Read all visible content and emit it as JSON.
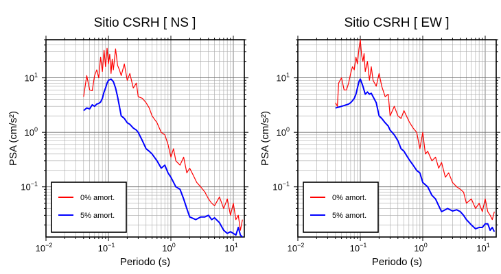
{
  "chart_data": [
    {
      "type": "line",
      "title": "Sitio CSRH [ NS ]",
      "xlabel": "Periodo (s)",
      "ylabel": "PSA (cm/s²)",
      "xscale": "log",
      "yscale": "log",
      "xlim": [
        0.01,
        15
      ],
      "ylim": [
        0.012,
        50
      ],
      "grid": true,
      "legend_position": "bottom-left",
      "x_ticks": [
        {
          "value": 0.01,
          "base": "10",
          "exp": "−2"
        },
        {
          "value": 0.1,
          "base": "10",
          "exp": "−1"
        },
        {
          "value": 1,
          "base": "10",
          "exp": "0"
        },
        {
          "value": 10,
          "base": "10",
          "exp": "1"
        }
      ],
      "y_ticks": [
        {
          "value": 0.1,
          "base": "10",
          "exp": "−1"
        },
        {
          "value": 1,
          "base": "10",
          "exp": "0"
        },
        {
          "value": 10,
          "base": "10",
          "exp": "1"
        }
      ],
      "series": [
        {
          "name": "0% amort.",
          "color": "#ff0000",
          "x": [
            0.04,
            0.045,
            0.05,
            0.055,
            0.06,
            0.065,
            0.07,
            0.075,
            0.08,
            0.085,
            0.09,
            0.095,
            0.1,
            0.105,
            0.11,
            0.115,
            0.12,
            0.13,
            0.14,
            0.15,
            0.16,
            0.18,
            0.2,
            0.22,
            0.25,
            0.28,
            0.3,
            0.35,
            0.4,
            0.45,
            0.5,
            0.6,
            0.7,
            0.8,
            0.9,
            1.0,
            1.1,
            1.2,
            1.4,
            1.6,
            1.8,
            2.0,
            2.3,
            2.6,
            3.0,
            3.5,
            4.0,
            4.5,
            5.0,
            6.0,
            7.0,
            8.0,
            9.0,
            10.0,
            11.0,
            12.0,
            13.0,
            14.0
          ],
          "values": [
            4.5,
            11.0,
            6.0,
            5.8,
            11.0,
            14.0,
            10.0,
            24.0,
            13.0,
            32.0,
            16.0,
            35.0,
            18.0,
            27.0,
            12.0,
            22.0,
            14.0,
            34.0,
            17.0,
            14.0,
            11.0,
            18.0,
            9.0,
            12.0,
            6.5,
            8.0,
            4.5,
            4.2,
            3.5,
            2.8,
            2.0,
            1.5,
            1.0,
            0.9,
            0.6,
            0.35,
            0.5,
            0.3,
            0.25,
            0.35,
            0.18,
            0.22,
            0.16,
            0.12,
            0.1,
            0.08,
            0.06,
            0.05,
            0.045,
            0.065,
            0.04,
            0.06,
            0.03,
            0.05,
            0.025,
            0.03,
            0.016,
            0.025
          ]
        },
        {
          "name": "5% amort.",
          "color": "#0000ff",
          "x": [
            0.04,
            0.045,
            0.05,
            0.055,
            0.06,
            0.065,
            0.07,
            0.075,
            0.08,
            0.085,
            0.09,
            0.095,
            0.1,
            0.11,
            0.12,
            0.13,
            0.14,
            0.15,
            0.16,
            0.18,
            0.2,
            0.22,
            0.25,
            0.28,
            0.3,
            0.35,
            0.4,
            0.45,
            0.5,
            0.6,
            0.7,
            0.8,
            0.9,
            1.0,
            1.2,
            1.4,
            1.6,
            1.8,
            2.0,
            2.5,
            3.0,
            3.5,
            4.0,
            4.5,
            5.0,
            6.0,
            7.0,
            8.0,
            9.0,
            10.0,
            11.0,
            12.0,
            13.0,
            14.0
          ],
          "values": [
            2.5,
            2.8,
            2.7,
            3.2,
            3.0,
            3.3,
            3.4,
            3.6,
            4.2,
            5.5,
            6.5,
            8.0,
            9.0,
            9.5,
            8.5,
            6.5,
            4.5,
            3.0,
            2.0,
            1.8,
            1.5,
            1.4,
            1.2,
            1.1,
            1.0,
            0.7,
            0.5,
            0.45,
            0.4,
            0.3,
            0.22,
            0.25,
            0.18,
            0.15,
            0.1,
            0.09,
            0.06,
            0.04,
            0.028,
            0.025,
            0.028,
            0.028,
            0.03,
            0.025,
            0.027,
            0.022,
            0.016,
            0.014,
            0.015,
            0.014,
            0.013,
            0.018,
            0.013,
            0.012
          ]
        }
      ]
    },
    {
      "type": "line",
      "title": "Sitio CSRH [ EW ]",
      "xlabel": "Periodo (s)",
      "ylabel": "PSA (cm/s²)",
      "xscale": "log",
      "yscale": "log",
      "xlim": [
        0.01,
        15
      ],
      "ylim": [
        0.012,
        50
      ],
      "grid": true,
      "legend_position": "bottom-left",
      "x_ticks": [
        {
          "value": 0.01,
          "base": "10",
          "exp": "−2"
        },
        {
          "value": 0.1,
          "base": "10",
          "exp": "−1"
        },
        {
          "value": 1,
          "base": "10",
          "exp": "0"
        },
        {
          "value": 10,
          "base": "10",
          "exp": "1"
        }
      ],
      "y_ticks": [
        {
          "value": 0.1,
          "base": "10",
          "exp": "−1"
        },
        {
          "value": 1,
          "base": "10",
          "exp": "0"
        },
        {
          "value": 10,
          "base": "10",
          "exp": "1"
        }
      ],
      "series": [
        {
          "name": "0% amort.",
          "color": "#ff0000",
          "x": [
            0.04,
            0.043,
            0.045,
            0.05,
            0.055,
            0.06,
            0.065,
            0.07,
            0.075,
            0.08,
            0.085,
            0.09,
            0.095,
            0.1,
            0.105,
            0.11,
            0.115,
            0.12,
            0.13,
            0.14,
            0.15,
            0.16,
            0.18,
            0.2,
            0.22,
            0.25,
            0.28,
            0.3,
            0.35,
            0.4,
            0.45,
            0.5,
            0.6,
            0.7,
            0.8,
            0.9,
            1.0,
            1.1,
            1.2,
            1.4,
            1.6,
            1.8,
            2.0,
            2.3,
            2.6,
            3.0,
            3.5,
            4.0,
            4.5,
            5.0,
            6.0,
            7.0,
            8.0,
            9.0,
            10.0,
            11.0,
            12.0,
            13.0,
            14.0
          ],
          "values": [
            3.5,
            3.0,
            8.0,
            10.0,
            6.0,
            6.0,
            8.0,
            12.0,
            16.0,
            14.0,
            24.0,
            18.0,
            34.0,
            50.0,
            26.0,
            20.0,
            28.0,
            13.0,
            20.0,
            9.0,
            16.0,
            9.0,
            7.0,
            12.0,
            7.0,
            4.5,
            5.0,
            2.0,
            3.0,
            2.0,
            1.8,
            2.5,
            1.6,
            1.2,
            1.0,
            0.5,
            1.0,
            0.4,
            0.45,
            0.3,
            0.35,
            0.22,
            0.28,
            0.15,
            0.18,
            0.12,
            0.1,
            0.09,
            0.08,
            0.05,
            0.06,
            0.04,
            0.05,
            0.035,
            0.06,
            0.035,
            0.03,
            0.025,
            0.035
          ]
        },
        {
          "name": "5% amort.",
          "color": "#0000ff",
          "x": [
            0.04,
            0.045,
            0.05,
            0.055,
            0.06,
            0.065,
            0.07,
            0.075,
            0.08,
            0.085,
            0.09,
            0.095,
            0.1,
            0.11,
            0.12,
            0.13,
            0.14,
            0.15,
            0.16,
            0.18,
            0.2,
            0.22,
            0.25,
            0.28,
            0.3,
            0.35,
            0.4,
            0.45,
            0.5,
            0.6,
            0.7,
            0.8,
            0.9,
            1.0,
            1.2,
            1.4,
            1.6,
            1.8,
            2.0,
            2.5,
            3.0,
            3.5,
            4.0,
            4.5,
            5.0,
            6.0,
            7.0,
            8.0,
            9.0,
            10.0,
            11.0,
            12.0,
            13.0,
            14.0
          ],
          "values": [
            2.8,
            2.9,
            3.0,
            3.1,
            3.2,
            3.3,
            3.5,
            3.8,
            4.2,
            5.0,
            6.5,
            8.5,
            9.5,
            7.0,
            5.0,
            5.5,
            5.0,
            5.2,
            4.5,
            3.5,
            2.0,
            1.8,
            1.5,
            1.3,
            1.1,
            0.9,
            0.7,
            0.5,
            0.45,
            0.32,
            0.25,
            0.2,
            0.18,
            0.12,
            0.1,
            0.07,
            0.06,
            0.045,
            0.035,
            0.04,
            0.036,
            0.038,
            0.035,
            0.03,
            0.025,
            0.02,
            0.017,
            0.018,
            0.018,
            0.021,
            0.021,
            0.016,
            0.018,
            0.015
          ]
        }
      ]
    }
  ]
}
